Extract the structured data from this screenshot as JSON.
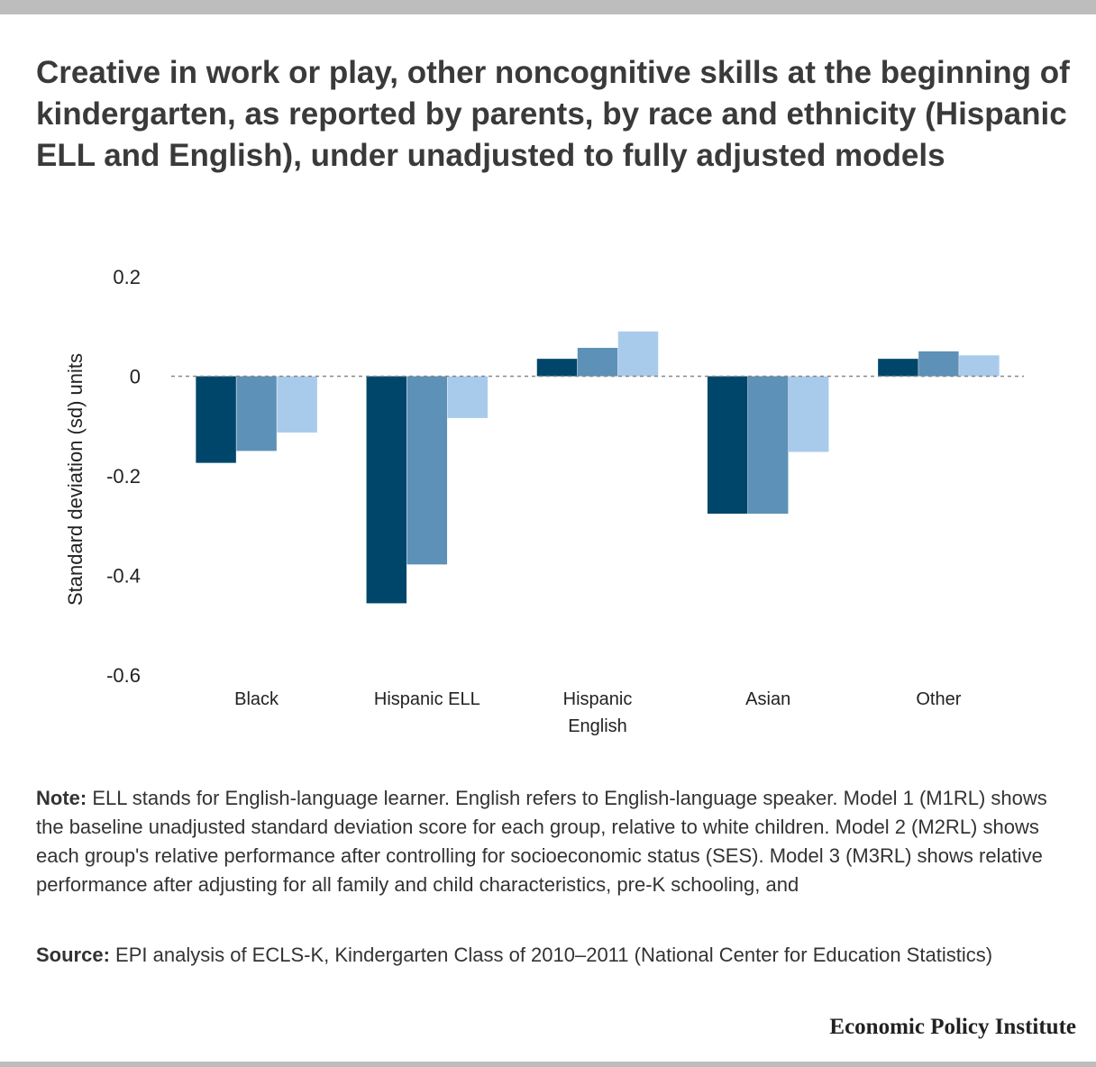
{
  "title": "Creative in work or play, other noncognitive skills at the beginning of kindergarten, as reported by parents, by race and ethnicity (Hispanic ELL and English), under unadjusted to fully adjusted models",
  "note": {
    "label": "Note:",
    "text": "ELL stands for English-language learner. English refers to English-language speaker. Model 1 (M1RL) shows the baseline unadjusted standard deviation score for each group, relative to white children. Model 2 (M2RL) shows each group's relative performance after controlling for socioeconomic status (SES). Model 3 (M3RL) shows relative performance after adjusting for all family and child characteristics, pre-K schooling, and"
  },
  "source": {
    "label": "Source:",
    "text": "EPI analysis of ECLS-K, Kindergarten Class of 2010–2011 (National Center for Education Statistics)"
  },
  "brand": "Economic Policy Institute",
  "chart_data": {
    "type": "bar",
    "ylabel": "Standard deviation (sd) units",
    "ylim": [
      -0.6,
      0.2
    ],
    "yticks": [
      0.2,
      0,
      -0.2,
      -0.4,
      -0.6
    ],
    "ytick_labels": [
      "0.2",
      "0",
      "-0.2",
      "-0.4",
      "-0.6"
    ],
    "categories": [
      "Black",
      "Hispanic ELL",
      "Hispanic English",
      "Asian",
      "Other"
    ],
    "category_lines": [
      [
        "Black"
      ],
      [
        "Hispanic ELL"
      ],
      [
        "Hispanic",
        "English"
      ],
      [
        "Asian"
      ],
      [
        "Other"
      ]
    ],
    "series": [
      {
        "color": "#00466b",
        "values": [
          -0.174,
          -0.456,
          0.035,
          -0.276,
          0.035
        ]
      },
      {
        "color": "#5d91b7",
        "values": [
          -0.15,
          -0.378,
          0.057,
          -0.276,
          0.05
        ]
      },
      {
        "color": "#a9cbeb",
        "values": [
          -0.113,
          -0.084,
          0.09,
          -0.152,
          0.042
        ]
      }
    ],
    "zero_line": "dashed",
    "grid": false,
    "legend": "none"
  }
}
